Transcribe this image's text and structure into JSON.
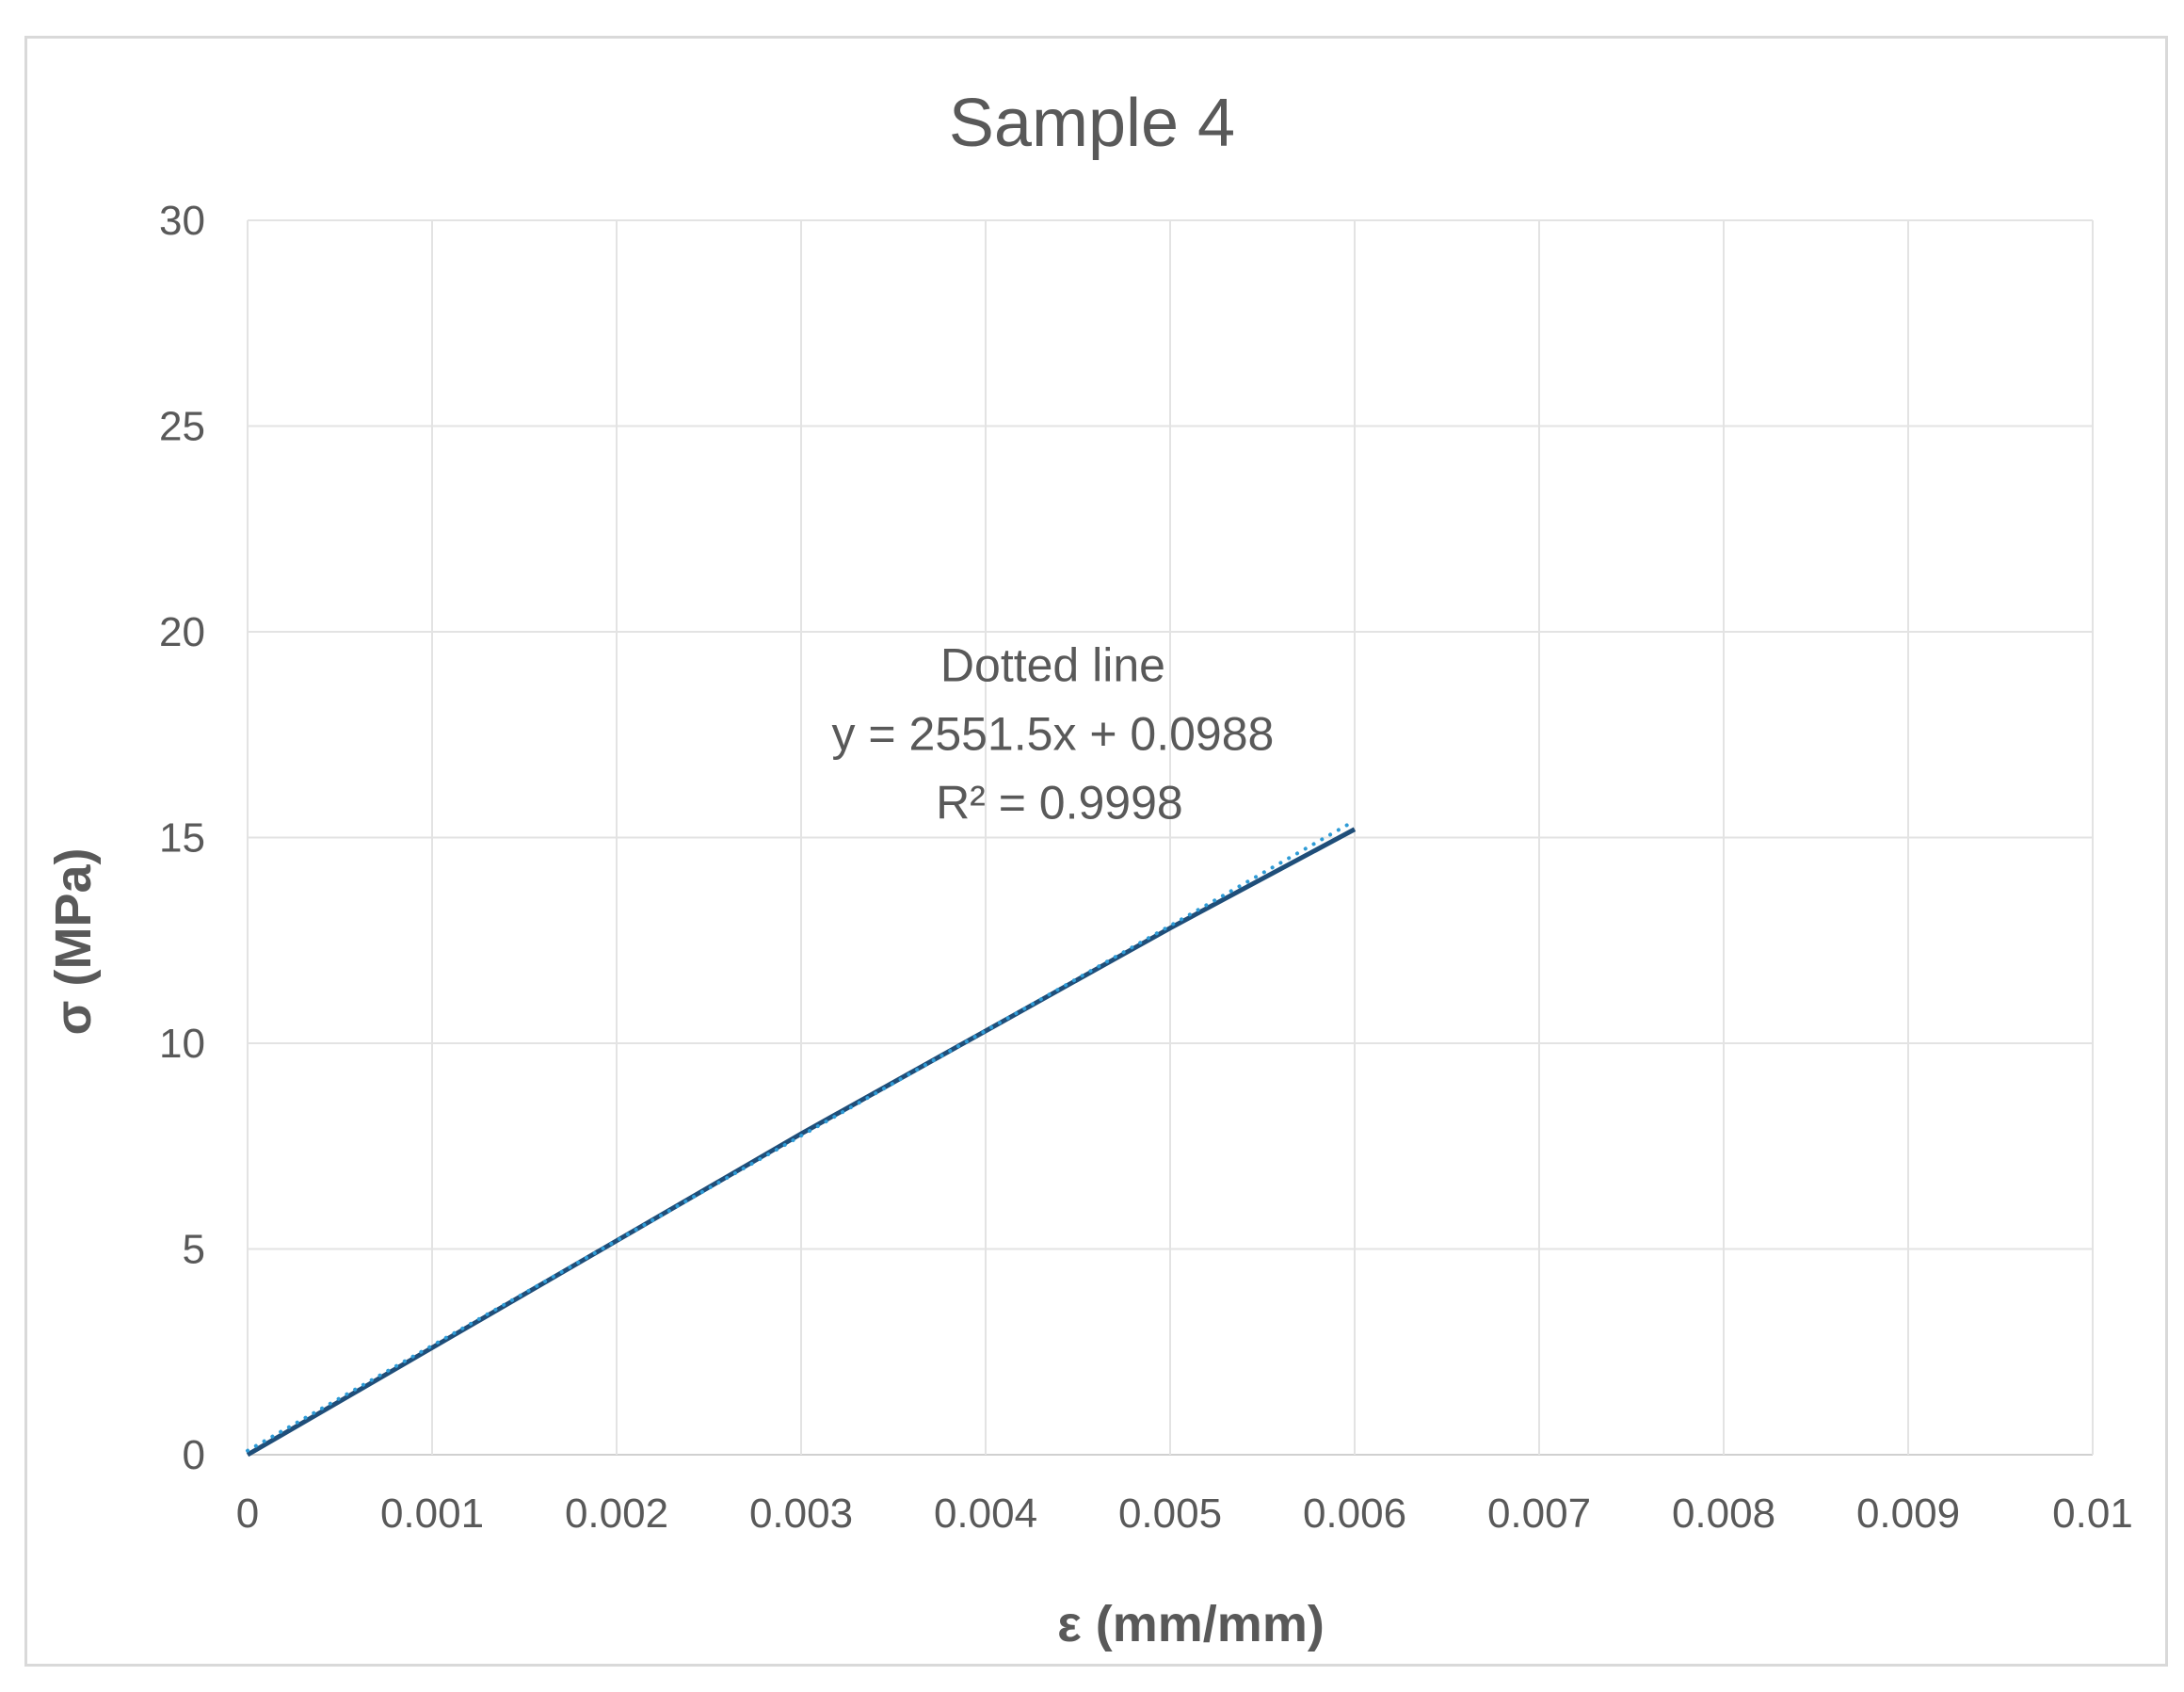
{
  "chart_data": {
    "type": "line",
    "title": "Sample 4",
    "xlabel": "ε (mm/mm)",
    "ylabel": "σ (MPa)",
    "xlim": [
      0,
      0.01
    ],
    "ylim": [
      0,
      30
    ],
    "x_ticks": [
      0,
      0.001,
      0.002,
      0.003,
      0.004,
      0.005,
      0.006,
      0.007,
      0.008,
      0.009,
      0.01
    ],
    "x_tick_labels": [
      "0",
      "0.001",
      "0.002",
      "0.003",
      "0.004",
      "0.005",
      "0.006",
      "0.007",
      "0.008",
      "0.009",
      "0.01"
    ],
    "y_ticks": [
      0,
      5,
      10,
      15,
      20,
      25,
      30
    ],
    "y_tick_labels": [
      "0",
      "5",
      "10",
      "15",
      "20",
      "25",
      "30"
    ],
    "grid": true,
    "legend": "none",
    "series": [
      {
        "style": "solid",
        "color": "#1f4e79",
        "x": [
          0,
          0.001,
          0.002,
          0.003,
          0.004,
          0.005,
          0.006
        ],
        "y": [
          0,
          2.6,
          5.2,
          7.8,
          10.3,
          12.8,
          15.2
        ]
      },
      {
        "style": "dotted",
        "color": "#2e9bd6",
        "x": [
          0,
          0.006
        ],
        "y": [
          0.0988,
          15.4078
        ]
      }
    ],
    "annotation": {
      "lines": [
        "Dotted line",
        "y = 2551.5x + 0.0988",
        "R² = 0.9998"
      ],
      "x": 0.0044,
      "y": 18.8
    }
  }
}
